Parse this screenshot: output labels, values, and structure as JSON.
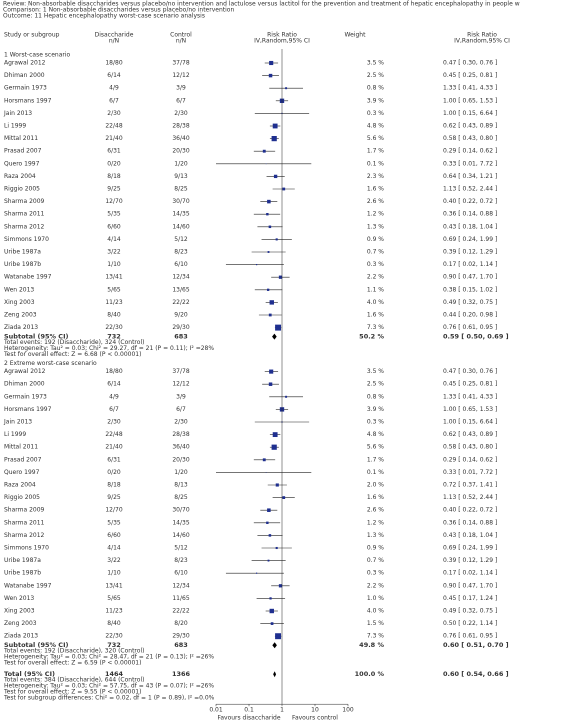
{
  "header": {
    "review": "Review: Non-absorbable disaccharides versus placebo/no intervention and lactulose versus lactitol for the prevention and treatment of hepatic encephalopathy in people w",
    "comparison": "Comparison: 1 Non-absorbable disaccharides versus placebo/no intervention",
    "outcome": "Outcome: 11 Hepatic encephalopathy worst-case scenario analysis"
  },
  "chart_data": {
    "type": "forest",
    "columns": {
      "study": "Study or subgroup",
      "dis": [
        "Disaccharide",
        "n/N"
      ],
      "ctl": [
        "Control",
        "n/N"
      ],
      "plot": [
        "Risk Ratio",
        "IV,Random,95% CI"
      ],
      "weight": "Weight",
      "rr": [
        "Risk Ratio",
        "IV,Random,95% CI"
      ]
    },
    "groups": [
      {
        "title": "1 Worst-case scenario",
        "studies": [
          {
            "name": "Agrawal 2012",
            "dis": "18/80",
            "ctl": "37/78",
            "weight": {
              "value": 3.5,
              "label": "3.5 %"
            },
            "rr": 0.47,
            "ci": [
              0.3,
              0.76
            ],
            "rr_label": "0.47 [ 0.30, 0.76 ]"
          },
          {
            "name": "Dhiman 2000",
            "dis": "6/14",
            "ctl": "12/12",
            "weight": {
              "value": 2.5,
              "label": "2.5 %"
            },
            "rr": 0.45,
            "ci": [
              0.25,
              0.81
            ],
            "rr_label": "0.45 [ 0.25, 0.81 ]"
          },
          {
            "name": "Germain 1973",
            "dis": "4/9",
            "ctl": "3/9",
            "weight": {
              "value": 0.8,
              "label": "0.8 %"
            },
            "rr": 1.33,
            "ci": [
              0.41,
              4.33
            ],
            "rr_label": "1.33 [ 0.41, 4.33 ]"
          },
          {
            "name": "Horsmans 1997",
            "dis": "6/7",
            "ctl": "6/7",
            "weight": {
              "value": 3.9,
              "label": "3.9 %"
            },
            "rr": 1.0,
            "ci": [
              0.65,
              1.53
            ],
            "rr_label": "1.00 [ 0.65, 1.53 ]"
          },
          {
            "name": "Jain 2013",
            "dis": "2/30",
            "ctl": "2/30",
            "weight": {
              "value": 0.3,
              "label": "0.3 %"
            },
            "rr": 1.0,
            "ci": [
              0.15,
              6.64
            ],
            "rr_label": "1.00 [ 0.15, 6.64 ]"
          },
          {
            "name": "Li 1999",
            "dis": "22/48",
            "ctl": "28/38",
            "weight": {
              "value": 4.8,
              "label": "4.8 %"
            },
            "rr": 0.62,
            "ci": [
              0.43,
              0.89
            ],
            "rr_label": "0.62 [ 0.43, 0.89 ]"
          },
          {
            "name": "Mittal 2011",
            "dis": "21/40",
            "ctl": "36/40",
            "weight": {
              "value": 5.6,
              "label": "5.6 %"
            },
            "rr": 0.58,
            "ci": [
              0.43,
              0.8
            ],
            "rr_label": "0.58 [ 0.43, 0.80 ]"
          },
          {
            "name": "Prasad 2007",
            "dis": "6/31",
            "ctl": "20/30",
            "weight": {
              "value": 1.7,
              "label": "1.7 %"
            },
            "rr": 0.29,
            "ci": [
              0.14,
              0.62
            ],
            "rr_label": "0.29 [ 0.14, 0.62 ]"
          },
          {
            "name": "Quero 1997",
            "dis": "0/20",
            "ctl": "1/20",
            "weight": {
              "value": 0.1,
              "label": "0.1 %"
            },
            "rr": 0.33,
            "ci": [
              0.01,
              7.72
            ],
            "rr_label": "0.33 [ 0.01, 7.72 ]"
          },
          {
            "name": "Raza 2004",
            "dis": "8/18",
            "ctl": "9/13",
            "weight": {
              "value": 2.3,
              "label": "2.3 %"
            },
            "rr": 0.64,
            "ci": [
              0.34,
              1.21
            ],
            "rr_label": "0.64 [ 0.34, 1.21 ]"
          },
          {
            "name": "Riggio 2005",
            "dis": "9/25",
            "ctl": "8/25",
            "weight": {
              "value": 1.6,
              "label": "1.6 %"
            },
            "rr": 1.13,
            "ci": [
              0.52,
              2.44
            ],
            "rr_label": "1.13 [ 0.52, 2.44 ]"
          },
          {
            "name": "Sharma 2009",
            "dis": "12/70",
            "ctl": "30/70",
            "weight": {
              "value": 2.6,
              "label": "2.6 %"
            },
            "rr": 0.4,
            "ci": [
              0.22,
              0.72
            ],
            "rr_label": "0.40 [ 0.22, 0.72 ]"
          },
          {
            "name": "Sharma 2011",
            "dis": "5/35",
            "ctl": "14/35",
            "weight": {
              "value": 1.2,
              "label": "1.2 %"
            },
            "rr": 0.36,
            "ci": [
              0.14,
              0.88
            ],
            "rr_label": "0.36 [ 0.14, 0.88 ]"
          },
          {
            "name": "Sharma 2012",
            "dis": "6/60",
            "ctl": "14/60",
            "weight": {
              "value": 1.3,
              "label": "1.3 %"
            },
            "rr": 0.43,
            "ci": [
              0.18,
              1.04
            ],
            "rr_label": "0.43 [ 0.18, 1.04 ]"
          },
          {
            "name": "Simmons 1970",
            "dis": "4/14",
            "ctl": "5/12",
            "weight": {
              "value": 0.9,
              "label": "0.9 %"
            },
            "rr": 0.69,
            "ci": [
              0.24,
              1.99
            ],
            "rr_label": "0.69 [ 0.24, 1.99 ]"
          },
          {
            "name": "Uribe 1987a",
            "dis": "3/22",
            "ctl": "8/23",
            "weight": {
              "value": 0.7,
              "label": "0.7 %"
            },
            "rr": 0.39,
            "ci": [
              0.12,
              1.29
            ],
            "rr_label": "0.39 [ 0.12, 1.29 ]"
          },
          {
            "name": "Uribe 1987b",
            "dis": "1/10",
            "ctl": "6/10",
            "weight": {
              "value": 0.3,
              "label": "0.3 %"
            },
            "rr": 0.17,
            "ci": [
              0.02,
              1.14
            ],
            "rr_label": "0.17 [ 0.02, 1.14 ]"
          },
          {
            "name": "Watanabe 1997",
            "dis": "13/41",
            "ctl": "12/34",
            "weight": {
              "value": 2.2,
              "label": "2.2 %"
            },
            "rr": 0.9,
            "ci": [
              0.47,
              1.7
            ],
            "rr_label": "0.90 [ 0.47, 1.70 ]"
          },
          {
            "name": "Wen 2013",
            "dis": "5/65",
            "ctl": "13/65",
            "weight": {
              "value": 1.1,
              "label": "1.1 %"
            },
            "rr": 0.38,
            "ci": [
              0.15,
              1.02
            ],
            "rr_label": "0.38 [ 0.15, 1.02 ]"
          },
          {
            "name": "Xing 2003",
            "dis": "11/23",
            "ctl": "22/22",
            "weight": {
              "value": 4.0,
              "label": "4.0 %"
            },
            "rr": 0.49,
            "ci": [
              0.32,
              0.75
            ],
            "rr_label": "0.49 [ 0.32, 0.75 ]"
          },
          {
            "name": "Zeng 2003",
            "dis": "8/40",
            "ctl": "9/20",
            "weight": {
              "value": 1.6,
              "label": "1.6 %"
            },
            "rr": 0.44,
            "ci": [
              0.2,
              0.98
            ],
            "rr_label": "0.44 [ 0.20, 0.98 ]"
          },
          {
            "name": "Ziada 2013",
            "dis": "22/30",
            "ctl": "29/30",
            "weight": {
              "value": 7.3,
              "label": "7.3 %"
            },
            "rr": 0.76,
            "ci": [
              0.61,
              0.95
            ],
            "rr_label": "0.76 [ 0.61, 0.95 ]"
          }
        ],
        "subtotal": {
          "name": "Subtotal (95% CI)",
          "dis": 732,
          "ctl": 683,
          "weight": {
            "value": 50.2,
            "label": "50.2 %"
          },
          "rr": 0.59,
          "ci": [
            0.5,
            0.69
          ],
          "rr_label": "0.59 [ 0.50, 0.69 ]"
        },
        "notes": [
          "Total events: 192 (Disaccharide), 324 (Control)",
          "Heterogeneity: Tau² = 0.03; Chi² = 29.27, df = 21 (P = 0.11); I² =28%",
          "Test for overall effect: Z = 6.68 (P < 0.00001)"
        ]
      },
      {
        "title": "2 Extreme worst-case scenario",
        "studies": [
          {
            "name": "Agrawal 2012",
            "dis": "18/80",
            "ctl": "37/78",
            "weight": {
              "value": 3.5,
              "label": "3.5 %"
            },
            "rr": 0.47,
            "ci": [
              0.3,
              0.76
            ],
            "rr_label": "0.47 [ 0.30, 0.76 ]"
          },
          {
            "name": "Dhiman 2000",
            "dis": "6/14",
            "ctl": "12/12",
            "weight": {
              "value": 2.5,
              "label": "2.5 %"
            },
            "rr": 0.45,
            "ci": [
              0.25,
              0.81
            ],
            "rr_label": "0.45 [ 0.25, 0.81 ]"
          },
          {
            "name": "Germain 1973",
            "dis": "4/9",
            "ctl": "3/9",
            "weight": {
              "value": 0.8,
              "label": "0.8 %"
            },
            "rr": 1.33,
            "ci": [
              0.41,
              4.33
            ],
            "rr_label": "1.33 [ 0.41, 4.33 ]"
          },
          {
            "name": "Horsmans 1997",
            "dis": "6/7",
            "ctl": "6/7",
            "weight": {
              "value": 3.9,
              "label": "3.9 %"
            },
            "rr": 1.0,
            "ci": [
              0.65,
              1.53
            ],
            "rr_label": "1.00 [ 0.65, 1.53 ]"
          },
          {
            "name": "Jain 2013",
            "dis": "2/30",
            "ctl": "2/30",
            "weight": {
              "value": 0.3,
              "label": "0.3 %"
            },
            "rr": 1.0,
            "ci": [
              0.15,
              6.64
            ],
            "rr_label": "1.00 [ 0.15, 6.64 ]"
          },
          {
            "name": "Li 1999",
            "dis": "22/48",
            "ctl": "28/38",
            "weight": {
              "value": 4.8,
              "label": "4.8 %"
            },
            "rr": 0.62,
            "ci": [
              0.43,
              0.89
            ],
            "rr_label": "0.62 [ 0.43, 0.89 ]"
          },
          {
            "name": "Mittal 2011",
            "dis": "21/40",
            "ctl": "36/40",
            "weight": {
              "value": 5.6,
              "label": "5.6 %"
            },
            "rr": 0.58,
            "ci": [
              0.43,
              0.8
            ],
            "rr_label": "0.58 [ 0.43, 0.80 ]"
          },
          {
            "name": "Prasad 2007",
            "dis": "6/31",
            "ctl": "20/30",
            "weight": {
              "value": 1.7,
              "label": "1.7 %"
            },
            "rr": 0.29,
            "ci": [
              0.14,
              0.62
            ],
            "rr_label": "0.29 [ 0.14, 0.62 ]"
          },
          {
            "name": "Quero 1997",
            "dis": "0/20",
            "ctl": "1/20",
            "weight": {
              "value": 0.1,
              "label": "0.1 %"
            },
            "rr": 0.33,
            "ci": [
              0.01,
              7.72
            ],
            "rr_label": "0.33 [ 0.01, 7.72 ]"
          },
          {
            "name": "Raza 2004",
            "dis": "8/18",
            "ctl": "8/13",
            "weight": {
              "value": 2.0,
              "label": "2.0 %"
            },
            "rr": 0.72,
            "ci": [
              0.37,
              1.41
            ],
            "rr_label": "0.72 [ 0.37, 1.41 ]"
          },
          {
            "name": "Riggio 2005",
            "dis": "9/25",
            "ctl": "8/25",
            "weight": {
              "value": 1.6,
              "label": "1.6 %"
            },
            "rr": 1.13,
            "ci": [
              0.52,
              2.44
            ],
            "rr_label": "1.13 [ 0.52, 2.44 ]"
          },
          {
            "name": "Sharma 2009",
            "dis": "12/70",
            "ctl": "30/70",
            "weight": {
              "value": 2.6,
              "label": "2.6 %"
            },
            "rr": 0.4,
            "ci": [
              0.22,
              0.72
            ],
            "rr_label": "0.40 [ 0.22, 0.72 ]"
          },
          {
            "name": "Sharma 2011",
            "dis": "5/35",
            "ctl": "14/35",
            "weight": {
              "value": 1.2,
              "label": "1.2 %"
            },
            "rr": 0.36,
            "ci": [
              0.14,
              0.88
            ],
            "rr_label": "0.36 [ 0.14, 0.88 ]"
          },
          {
            "name": "Sharma 2012",
            "dis": "6/60",
            "ctl": "14/60",
            "weight": {
              "value": 1.3,
              "label": "1.3 %"
            },
            "rr": 0.43,
            "ci": [
              0.18,
              1.04
            ],
            "rr_label": "0.43 [ 0.18, 1.04 ]"
          },
          {
            "name": "Simmons 1970",
            "dis": "4/14",
            "ctl": "5/12",
            "weight": {
              "value": 0.9,
              "label": "0.9 %"
            },
            "rr": 0.69,
            "ci": [
              0.24,
              1.99
            ],
            "rr_label": "0.69 [ 0.24, 1.99 ]"
          },
          {
            "name": "Uribe 1987a",
            "dis": "3/22",
            "ctl": "8/23",
            "weight": {
              "value": 0.7,
              "label": "0.7 %"
            },
            "rr": 0.39,
            "ci": [
              0.12,
              1.29
            ],
            "rr_label": "0.39 [ 0.12, 1.29 ]"
          },
          {
            "name": "Uribe 1987b",
            "dis": "1/10",
            "ctl": "6/10",
            "weight": {
              "value": 0.3,
              "label": "0.3 %"
            },
            "rr": 0.17,
            "ci": [
              0.02,
              1.14
            ],
            "rr_label": "0.17 [ 0.02, 1.14 ]"
          },
          {
            "name": "Watanabe 1997",
            "dis": "13/41",
            "ctl": "12/34",
            "weight": {
              "value": 2.2,
              "label": "2.2 %"
            },
            "rr": 0.9,
            "ci": [
              0.47,
              1.7
            ],
            "rr_label": "0.90 [ 0.47, 1.70 ]"
          },
          {
            "name": "Wen 2013",
            "dis": "5/65",
            "ctl": "11/65",
            "weight": {
              "value": 1.0,
              "label": "1.0 %"
            },
            "rr": 0.45,
            "ci": [
              0.17,
              1.24
            ],
            "rr_label": "0.45 [ 0.17, 1.24 ]"
          },
          {
            "name": "Xing 2003",
            "dis": "11/23",
            "ctl": "22/22",
            "weight": {
              "value": 4.0,
              "label": "4.0 %"
            },
            "rr": 0.49,
            "ci": [
              0.32,
              0.75
            ],
            "rr_label": "0.49 [ 0.32, 0.75 ]"
          },
          {
            "name": "Zeng 2003",
            "dis": "8/40",
            "ctl": "8/20",
            "weight": {
              "value": 1.5,
              "label": "1.5 %"
            },
            "rr": 0.5,
            "ci": [
              0.22,
              1.14
            ],
            "rr_label": "0.50 [ 0.22, 1.14 ]"
          },
          {
            "name": "Ziada 2013",
            "dis": "22/30",
            "ctl": "29/30",
            "weight": {
              "value": 7.3,
              "label": "7.3 %"
            },
            "rr": 0.76,
            "ci": [
              0.61,
              0.95
            ],
            "rr_label": "0.76 [ 0.61, 0.95 ]"
          }
        ],
        "subtotal": {
          "name": "Subtotal (95% CI)",
          "dis": 732,
          "ctl": 683,
          "weight": {
            "value": 49.8,
            "label": "49.8 %"
          },
          "rr": 0.6,
          "ci": [
            0.51,
            0.7
          ],
          "rr_label": "0.60 [ 0.51, 0.70 ]"
        },
        "notes": [
          "Total events: 192 (Disaccharide), 320 (Control)",
          "Heterogeneity: Tau² = 0.03; Chi² = 28.47, df = 21 (P = 0.13); I² =26%",
          "Test for overall effect: Z = 6.59 (P < 0.00001)"
        ]
      }
    ],
    "total": {
      "name": "Total (95% CI)",
      "dis": 1464,
      "ctl": 1366,
      "weight": {
        "value": 100.0,
        "label": "100.0 %"
      },
      "rr": 0.6,
      "ci": [
        0.54,
        0.66
      ],
      "rr_label": "0.60 [ 0.54, 0.66 ]",
      "notes": [
        "Total events: 384 (Disaccharide), 644 (Control)",
        "Heterogeneity: Tau² = 0.03; Chi² = 57.75, df = 43 (P = 0.07); I² =26%",
        "Test for overall effect: Z = 9.55 (P < 0.00001)",
        "Test for subgroup differences: Chi² = 0.02, df = 1 (P = 0.89), I² =0.0%"
      ]
    },
    "xlim": [
      0.01,
      100
    ],
    "xticks": [
      0.01,
      0.1,
      1,
      10,
      100
    ],
    "log_scale": true,
    "xlabels": [
      "Favours disaccharide",
      "Favours control"
    ],
    "color": "#1f2f8f"
  }
}
